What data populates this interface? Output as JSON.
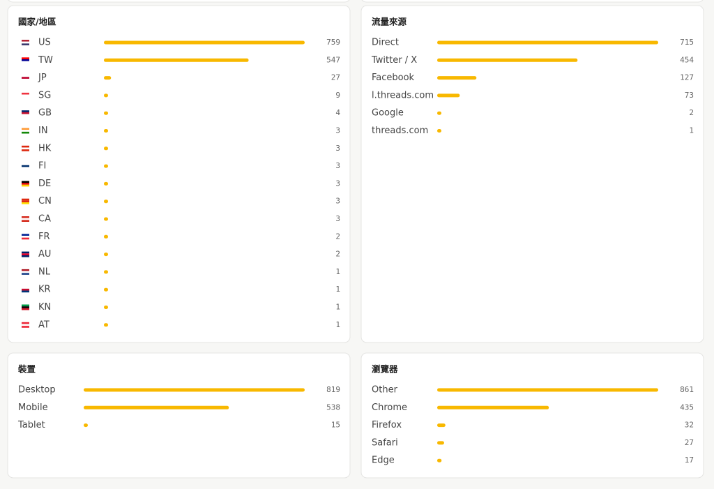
{
  "panels": [
    {
      "title": "國家/地區",
      "rows": [
        {
          "label": "US",
          "value": 759
        },
        {
          "label": "TW",
          "value": 547
        },
        {
          "label": "JP",
          "value": 27
        },
        {
          "label": "SG",
          "value": 9
        },
        {
          "label": "GB",
          "value": 4
        },
        {
          "label": "IN",
          "value": 3
        },
        {
          "label": "HK",
          "value": 3
        },
        {
          "label": "FI",
          "value": 3
        },
        {
          "label": "DE",
          "value": 3
        },
        {
          "label": "CN",
          "value": 3
        },
        {
          "label": "CA",
          "value": 3
        },
        {
          "label": "FR",
          "value": 2
        },
        {
          "label": "AU",
          "value": 2
        },
        {
          "label": "NL",
          "value": 1
        },
        {
          "label": "KR",
          "value": 1
        },
        {
          "label": "KN",
          "value": 1
        },
        {
          "label": "AT",
          "value": 1
        }
      ]
    },
    {
      "title": "流量來源",
      "rows": [
        {
          "label": "Direct",
          "value": 715
        },
        {
          "label": "Twitter / X",
          "value": 454
        },
        {
          "label": "Facebook",
          "value": 127
        },
        {
          "label": "l.threads.com",
          "value": 73
        },
        {
          "label": "Google",
          "value": 2
        },
        {
          "label": "threads.com",
          "value": 1
        }
      ]
    },
    {
      "title": "裝置",
      "rows": [
        {
          "label": "Desktop",
          "value": 819
        },
        {
          "label": "Mobile",
          "value": 538
        },
        {
          "label": "Tablet",
          "value": 15
        }
      ]
    },
    {
      "title": "瀏覽器",
      "rows": [
        {
          "label": "Other",
          "value": 861
        },
        {
          "label": "Chrome",
          "value": 435
        },
        {
          "label": "Firefox",
          "value": 32
        },
        {
          "label": "Safari",
          "value": 27
        },
        {
          "label": "Edge",
          "value": 17
        }
      ]
    }
  ]
}
